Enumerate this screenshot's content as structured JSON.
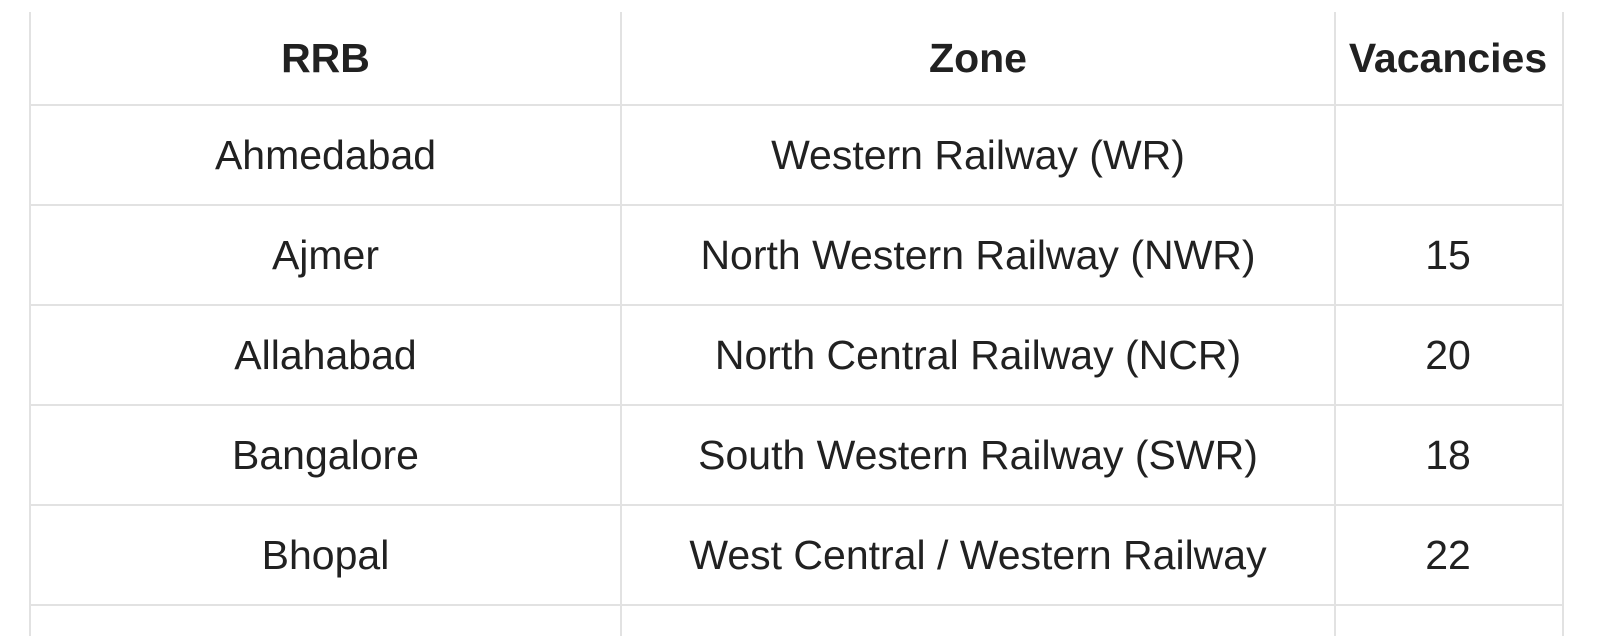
{
  "table": {
    "columns": [
      {
        "label": "RRB"
      },
      {
        "label": "Zone"
      },
      {
        "label": "Vacancies"
      }
    ],
    "rows": [
      {
        "rrb": "Ahmedabad",
        "zone": "Western Railway (WR)",
        "vacancies": ""
      },
      {
        "rrb": "Ajmer",
        "zone": "North Western Railway (NWR)",
        "vacancies": "15"
      },
      {
        "rrb": "Allahabad",
        "zone": "North Central Railway (NCR)",
        "vacancies": "20"
      },
      {
        "rrb": "Bangalore",
        "zone": "South Western Railway (SWR)",
        "vacancies": "18"
      },
      {
        "rrb": "Bhopal",
        "zone": "West Central / Western Railway",
        "vacancies": "22"
      }
    ]
  },
  "colors": {
    "border": "#e2e2e2",
    "text": "#212121",
    "background": "#ffffff"
  }
}
